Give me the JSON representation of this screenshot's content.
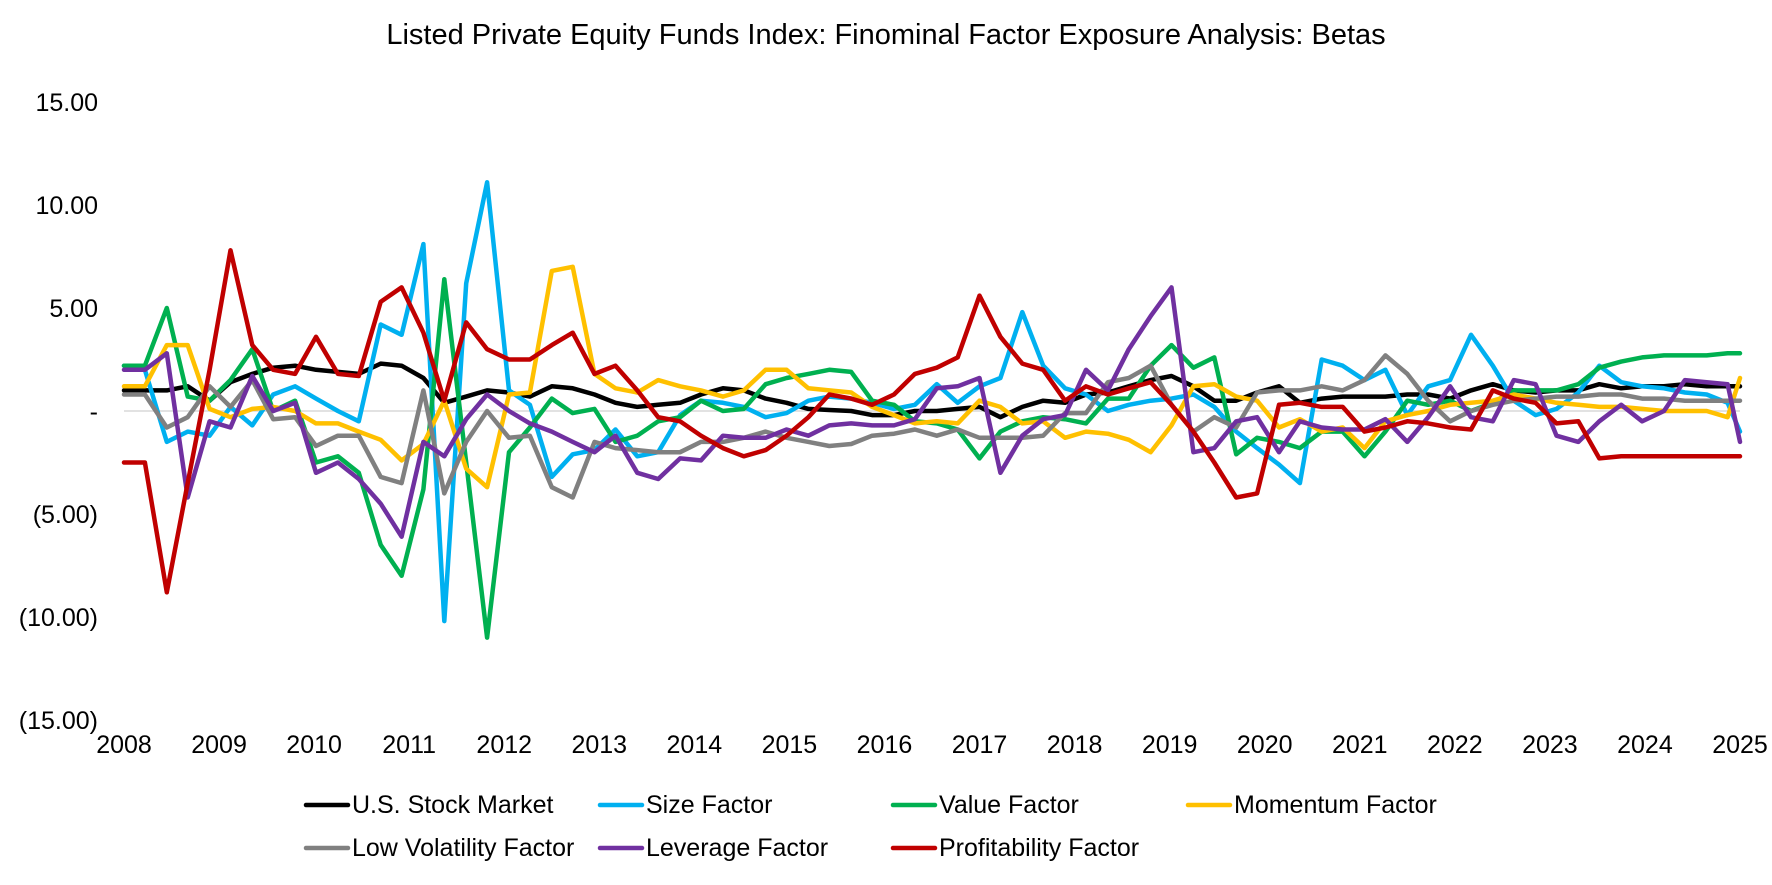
{
  "chart_data": {
    "type": "line",
    "title": "Listed Private Equity Funds Index: Finominal Factor Exposure Analysis: Betas",
    "xlabel": "",
    "ylabel": "",
    "xlim": [
      2008,
      2025
    ],
    "ylim": [
      -15,
      15
    ],
    "x_ticks": [
      2008,
      2009,
      2010,
      2011,
      2012,
      2013,
      2014,
      2015,
      2016,
      2017,
      2018,
      2019,
      2020,
      2021,
      2022,
      2023,
      2024,
      2025
    ],
    "x_tick_labels": [
      "2008",
      "2009",
      "2010",
      "2011",
      "2012",
      "2013",
      "2014",
      "2015",
      "2016",
      "2017",
      "2018",
      "2019",
      "2020",
      "2021",
      "2022",
      "2023",
      "2024",
      "2025"
    ],
    "y_ticks": [
      15,
      10,
      5,
      0,
      -5,
      -10,
      -15
    ],
    "y_tick_labels": [
      "15.00",
      "10.00",
      "5.00",
      "-",
      "(5.00)",
      "(10.00)",
      "(15.00)"
    ],
    "grid": false,
    "legend_position": "bottom",
    "x": [
      2008.0,
      2008.22,
      2008.45,
      2008.67,
      2008.9,
      2009.12,
      2009.35,
      2009.57,
      2009.8,
      2010.02,
      2010.25,
      2010.47,
      2010.7,
      2010.92,
      2011.15,
      2011.37,
      2011.6,
      2011.82,
      2012.05,
      2012.27,
      2012.5,
      2012.72,
      2012.95,
      2013.17,
      2013.4,
      2013.62,
      2013.85,
      2014.07,
      2014.3,
      2014.52,
      2014.75,
      2014.97,
      2015.2,
      2015.42,
      2015.65,
      2015.87,
      2016.1,
      2016.32,
      2016.55,
      2016.77,
      2017.0,
      2017.22,
      2017.45,
      2017.67,
      2017.9,
      2018.12,
      2018.35,
      2018.57,
      2018.8,
      2019.02,
      2019.25,
      2019.47,
      2019.7,
      2019.92,
      2020.15,
      2020.37,
      2020.6,
      2020.82,
      2021.05,
      2021.27,
      2021.5,
      2021.72,
      2021.95,
      2022.17,
      2022.4,
      2022.62,
      2022.85,
      2023.07,
      2023.3,
      2023.52,
      2023.75,
      2023.97,
      2024.2,
      2024.42,
      2024.65,
      2024.87,
      2025.0
    ],
    "series": [
      {
        "name": "U.S. Stock Market",
        "color": "#000000",
        "values": [
          1.0,
          1.0,
          1.0,
          1.2,
          0.5,
          1.4,
          1.8,
          2.1,
          2.2,
          2.0,
          1.9,
          1.8,
          2.3,
          2.2,
          1.6,
          0.4,
          0.7,
          1.0,
          0.9,
          0.7,
          1.2,
          1.1,
          0.8,
          0.4,
          0.2,
          0.3,
          0.4,
          0.8,
          1.1,
          1.0,
          0.6,
          0.4,
          0.1,
          0.05,
          0.0,
          -0.2,
          -0.2,
          0.0,
          0.0,
          0.1,
          0.2,
          -0.3,
          0.2,
          0.5,
          0.4,
          0.8,
          0.9,
          1.2,
          1.5,
          1.7,
          1.2,
          0.5,
          0.5,
          0.9,
          1.2,
          0.4,
          0.6,
          0.7,
          0.7,
          0.7,
          0.8,
          0.8,
          0.6,
          1.0,
          1.3,
          1.0,
          0.9,
          1.0,
          1.0,
          1.3,
          1.1,
          1.2,
          1.2,
          1.3,
          1.2,
          1.2,
          1.2
        ]
      },
      {
        "name": "Size Factor",
        "color": "#00b0f0",
        "values": [
          2.2,
          2.0,
          -1.5,
          -1.0,
          -1.2,
          0.2,
          -0.7,
          0.8,
          1.2,
          0.6,
          0.0,
          -0.5,
          4.2,
          3.7,
          8.1,
          -10.2,
          6.2,
          11.1,
          1.0,
          0.3,
          -3.2,
          -2.1,
          -1.9,
          -0.9,
          -2.2,
          -2.0,
          -0.2,
          0.5,
          0.4,
          0.2,
          -0.3,
          -0.1,
          0.5,
          0.7,
          0.6,
          0.4,
          0.1,
          0.3,
          1.3,
          0.4,
          1.2,
          1.6,
          4.8,
          2.2,
          1.1,
          0.8,
          0.0,
          0.3,
          0.5,
          0.6,
          0.8,
          0.2,
          -1.0,
          -1.8,
          -2.6,
          -3.5,
          2.5,
          2.2,
          1.5,
          2.0,
          -0.2,
          1.2,
          1.5,
          3.7,
          2.2,
          0.5,
          -0.2,
          0.1,
          0.9,
          2.2,
          1.4,
          1.2,
          1.1,
          0.9,
          0.8,
          0.4,
          -1.0
        ]
      },
      {
        "name": "Value Factor",
        "color": "#00b050",
        "values": [
          2.2,
          2.2,
          5.0,
          0.7,
          0.5,
          1.5,
          3.0,
          0.0,
          0.5,
          -2.5,
          -2.2,
          -3.0,
          -6.5,
          -8.0,
          -3.8,
          6.4,
          -2.5,
          -11.0,
          -2.0,
          -0.8,
          0.6,
          -0.1,
          0.1,
          -1.5,
          -1.2,
          -0.5,
          -0.3,
          0.5,
          0.0,
          0.1,
          1.3,
          1.6,
          1.8,
          2.0,
          1.9,
          0.5,
          0.3,
          -0.5,
          -0.6,
          -0.9,
          -2.3,
          -1.0,
          -0.5,
          -0.3,
          -0.4,
          -0.6,
          0.6,
          0.6,
          2.2,
          3.2,
          2.1,
          2.6,
          -2.1,
          -1.3,
          -1.5,
          -1.8,
          -1.0,
          -1.0,
          -2.2,
          -1.0,
          0.5,
          0.3,
          0.5,
          0.0,
          0.4,
          1.0,
          1.0,
          1.0,
          1.3,
          2.1,
          2.4,
          2.6,
          2.7,
          2.7,
          2.7,
          2.8,
          2.8
        ]
      },
      {
        "name": "Momentum Factor",
        "color": "#ffc000",
        "values": [
          1.2,
          1.2,
          3.2,
          3.2,
          0.1,
          -0.3,
          0.1,
          0.2,
          0.0,
          -0.6,
          -0.6,
          -1.0,
          -1.4,
          -2.4,
          -1.6,
          0.5,
          -2.8,
          -3.7,
          0.8,
          0.9,
          6.8,
          7.0,
          1.8,
          1.1,
          0.9,
          1.5,
          1.2,
          1.0,
          0.7,
          1.0,
          2.0,
          2.0,
          1.1,
          1.0,
          0.9,
          0.2,
          -0.2,
          -0.6,
          -0.5,
          -0.6,
          0.5,
          0.2,
          -0.6,
          -0.5,
          -1.3,
          -1.0,
          -1.1,
          -1.4,
          -2.0,
          -0.7,
          1.2,
          1.3,
          0.7,
          0.5,
          -0.8,
          -0.4,
          -1.0,
          -0.8,
          -1.8,
          -0.5,
          -0.2,
          0.0,
          0.3,
          0.4,
          0.5,
          0.8,
          0.6,
          0.4,
          0.3,
          0.2,
          0.2,
          0.1,
          0.0,
          0.0,
          0.0,
          -0.3,
          1.6
        ]
      },
      {
        "name": "Low Volatility Factor",
        "color": "#808080",
        "values": [
          0.8,
          0.8,
          -0.8,
          -0.3,
          1.2,
          0.2,
          1.5,
          -0.4,
          -0.3,
          -1.7,
          -1.2,
          -1.2,
          -3.2,
          -3.5,
          1.0,
          -4.0,
          -1.5,
          0.0,
          -1.3,
          -1.2,
          -3.7,
          -4.2,
          -1.5,
          -1.8,
          -1.9,
          -2.0,
          -2.0,
          -1.5,
          -1.5,
          -1.3,
          -1.0,
          -1.3,
          -1.5,
          -1.7,
          -1.6,
          -1.2,
          -1.1,
          -0.9,
          -1.2,
          -0.9,
          -1.3,
          -1.3,
          -1.3,
          -1.2,
          -0.1,
          -0.1,
          1.4,
          1.6,
          2.2,
          0.3,
          -1.0,
          -0.3,
          -0.8,
          0.9,
          1.0,
          1.0,
          1.2,
          1.0,
          1.5,
          2.7,
          1.8,
          0.5,
          -0.5,
          0.0,
          0.3,
          0.5,
          0.6,
          0.7,
          0.7,
          0.8,
          0.8,
          0.6,
          0.6,
          0.5,
          0.5,
          0.5,
          0.5
        ]
      },
      {
        "name": "Leverage Factor",
        "color": "#7030a0",
        "values": [
          2.0,
          2.0,
          2.8,
          -4.2,
          -0.5,
          -0.8,
          1.7,
          0.0,
          0.4,
          -3.0,
          -2.5,
          -3.3,
          -4.5,
          -6.1,
          -1.5,
          -2.2,
          -0.4,
          0.8,
          0.0,
          -0.6,
          -1.0,
          -1.5,
          -2.0,
          -1.2,
          -3.0,
          -3.3,
          -2.3,
          -2.4,
          -1.2,
          -1.3,
          -1.3,
          -0.9,
          -1.2,
          -0.7,
          -0.6,
          -0.7,
          -0.7,
          -0.4,
          1.1,
          1.2,
          1.6,
          -3.0,
          -1.2,
          -0.4,
          -0.2,
          2.0,
          1.0,
          3.0,
          4.6,
          6.0,
          -2.0,
          -1.8,
          -0.5,
          -0.3,
          -2.0,
          -0.5,
          -0.8,
          -0.9,
          -0.9,
          -0.4,
          -1.5,
          -0.3,
          1.2,
          -0.3,
          -0.5,
          1.5,
          1.3,
          -1.2,
          -1.5,
          -0.5,
          0.3,
          -0.5,
          0.0,
          1.5,
          1.4,
          1.3,
          -1.5
        ]
      },
      {
        "name": "Profitability Factor",
        "color": "#c00000",
        "values": [
          -2.5,
          -2.5,
          -8.8,
          -3.5,
          2.0,
          7.8,
          3.2,
          2.0,
          1.8,
          3.6,
          1.8,
          1.7,
          5.3,
          6.0,
          3.8,
          0.5,
          4.3,
          3.0,
          2.5,
          2.5,
          3.2,
          3.8,
          1.8,
          2.2,
          1.0,
          -0.3,
          -0.5,
          -1.2,
          -1.8,
          -2.2,
          -1.9,
          -1.2,
          -0.3,
          0.8,
          0.6,
          0.3,
          0.8,
          1.8,
          2.1,
          2.6,
          5.6,
          3.6,
          2.3,
          2.0,
          0.5,
          1.2,
          0.8,
          1.1,
          1.4,
          0.3,
          -1.0,
          -2.5,
          -4.2,
          -4.0,
          0.3,
          0.4,
          0.2,
          0.2,
          -1.0,
          -0.8,
          -0.5,
          -0.6,
          -0.8,
          -0.9,
          1.0,
          0.6,
          0.4,
          -0.6,
          -0.5,
          -2.3,
          -2.2,
          -2.2,
          -2.2,
          -2.2,
          -2.2,
          -2.2,
          -2.2
        ]
      }
    ]
  }
}
